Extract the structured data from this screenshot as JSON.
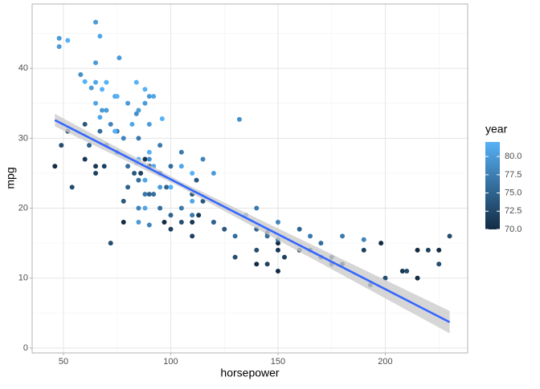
{
  "chart_data": {
    "type": "scatter",
    "x_label": "horsepower",
    "y_label": "mpg",
    "xlim": [
      35.4,
      238.4
    ],
    "ylim": [
      -0.7,
      49.2
    ],
    "xticks": [
      50,
      100,
      150,
      200
    ],
    "yticks": [
      0,
      10,
      20,
      30,
      40
    ],
    "xminor": [
      75,
      125,
      175,
      225
    ],
    "yminor": [
      5,
      15,
      25,
      35,
      45
    ],
    "grid": true,
    "legend": "right",
    "series": [
      {
        "x": [
          48,
          48,
          52,
          65,
          67,
          65,
          76,
          58,
          60,
          63,
          65,
          68,
          70,
          68,
          67,
          74,
          75,
          84,
          88,
          92,
          90,
          46,
          49,
          52,
          54,
          60,
          65,
          65,
          69,
          72,
          78,
          88,
          86,
          90,
          95,
          97,
          100,
          105,
          110,
          110,
          113,
          120,
          130,
          140,
          150,
          153,
          150,
          160,
          165,
          170,
          175,
          180,
          190,
          198,
          200,
          210,
          215,
          215,
          220,
          225,
          225,
          230,
          208,
          193,
          175,
          140,
          150,
          145,
          67,
          70,
          75,
          80,
          85,
          88,
          90,
          95,
          100,
          105,
          110,
          115,
          120,
          125,
          130,
          140,
          145,
          150,
          150,
          160,
          165,
          170,
          180,
          190,
          145,
          135,
          140,
          95,
          85,
          78,
          72,
          84,
          90,
          105,
          115,
          85,
          90,
          92,
          98,
          110,
          112,
          100,
          75,
          60,
          62,
          78,
          80,
          83,
          88,
          96,
          85,
          65,
          70,
          74,
          80,
          82,
          90,
          105,
          110,
          120,
          85,
          92,
          88,
          95,
          132,
          90,
          84,
          100,
          110,
          85,
          88
        ],
        "y": [
          44.3,
          43.1,
          44,
          46.6,
          44.6,
          40.8,
          41.5,
          39.1,
          38.1,
          37.2,
          38,
          37,
          38,
          34,
          33,
          36,
          36,
          38,
          37,
          36,
          36,
          26,
          29,
          31,
          23,
          27,
          25,
          26,
          26,
          15,
          18,
          27,
          25,
          26,
          25,
          18,
          17,
          18,
          18,
          16,
          19,
          18,
          13,
          14,
          14,
          13,
          15,
          14,
          14,
          13,
          13,
          12,
          14,
          15,
          10,
          11,
          14,
          10,
          14,
          14,
          12,
          16,
          11,
          9,
          12,
          12,
          11,
          12,
          31,
          29,
          28,
          26,
          24,
          22,
          22,
          20,
          19,
          20,
          19,
          21,
          18,
          17,
          16,
          17,
          16,
          15.5,
          18,
          17,
          16,
          15,
          16,
          15.5,
          16.5,
          19,
          20,
          29,
          30,
          30,
          32,
          33.5,
          27,
          28,
          27,
          20,
          17.6,
          22,
          23,
          22,
          24,
          26,
          31,
          32,
          29,
          21,
          23,
          25,
          35,
          32.8,
          34,
          35,
          34,
          31,
          35,
          32,
          32,
          26,
          25,
          25,
          27,
          26,
          24,
          23,
          32.7,
          28,
          26.5,
          23,
          21,
          18,
          20
        ],
        "year": [
          80,
          80,
          82,
          80,
          81,
          80,
          80,
          79,
          82,
          80,
          81,
          82,
          82,
          80,
          81,
          81,
          82,
          82,
          82,
          81,
          80,
          70,
          73,
          72,
          73,
          71,
          72,
          71,
          72,
          73,
          70,
          71,
          72,
          70,
          70,
          70,
          72,
          73,
          71,
          72,
          71,
          73,
          73,
          73,
          71,
          72,
          70,
          71,
          72,
          72,
          73,
          71,
          72,
          70,
          73,
          73,
          70,
          70,
          72,
          70,
          73,
          73,
          71,
          73,
          72,
          70,
          70,
          72,
          76,
          74,
          76,
          76,
          76,
          77,
          75,
          76,
          75,
          77,
          77,
          74,
          75,
          74,
          76,
          75,
          76,
          76,
          78,
          75,
          77,
          76,
          77,
          78,
          74,
          79,
          77,
          77,
          77,
          78,
          78,
          79,
          79,
          77,
          78,
          78,
          78,
          76,
          75,
          74,
          74,
          76,
          77,
          74,
          75,
          74,
          75,
          74,
          80,
          82,
          80,
          81,
          80,
          82,
          80,
          81,
          80,
          81,
          82,
          80,
          82,
          81,
          81,
          80,
          79,
          82,
          80,
          82,
          81,
          80,
          81
        ]
      }
    ],
    "fit": {
      "x": [
        46,
        230
      ],
      "y": [
        32.6,
        3.7
      ],
      "color": "#3366FF"
    },
    "band": {
      "x": [
        46,
        104,
        230
      ],
      "lower": [
        31.7,
        23.1,
        2.1
      ],
      "upper": [
        33.5,
        23.9,
        5.3
      ],
      "color": "#cccccc"
    },
    "colorbar": {
      "title": "year",
      "lim": [
        70,
        82
      ],
      "low": "#132B43",
      "high": "#56B1F7",
      "ticks": [
        {
          "value": 70,
          "label": "70.0"
        },
        {
          "value": 72.5,
          "label": "72.5"
        },
        {
          "value": 75,
          "label": "75.0"
        },
        {
          "value": 77.5,
          "label": "77.5"
        },
        {
          "value": 80,
          "label": "80.0"
        }
      ]
    }
  }
}
